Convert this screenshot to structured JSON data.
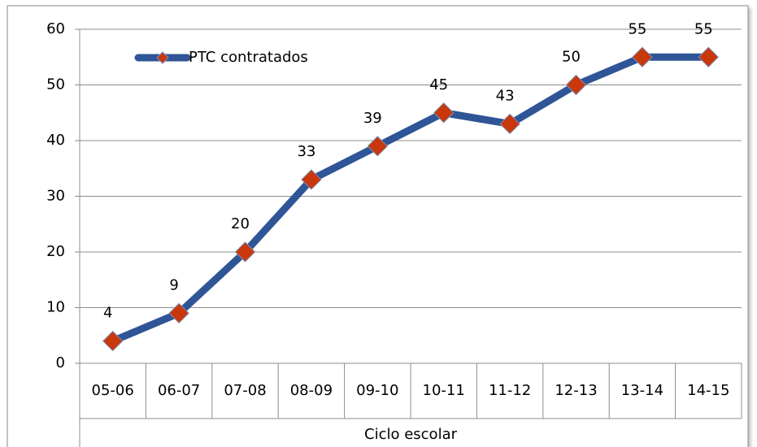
{
  "chart_data": {
    "type": "line",
    "categories": [
      "05-06",
      "06-07",
      "07-08",
      "08-09",
      "09-10",
      "10-11",
      "11-12",
      "12-13",
      "13-14",
      "14-15"
    ],
    "series": [
      {
        "name": "PTC contratados",
        "color": "#2f5597",
        "marker_color": "#c9370d",
        "values": [
          4,
          9,
          20,
          33,
          39,
          45,
          43,
          50,
          55,
          55
        ]
      }
    ],
    "xlabel": "Ciclo escolar",
    "ylim": [
      0,
      60
    ],
    "yticks": [
      0,
      10,
      20,
      30,
      40,
      50,
      60
    ],
    "grid": true,
    "legend": "top-left"
  }
}
